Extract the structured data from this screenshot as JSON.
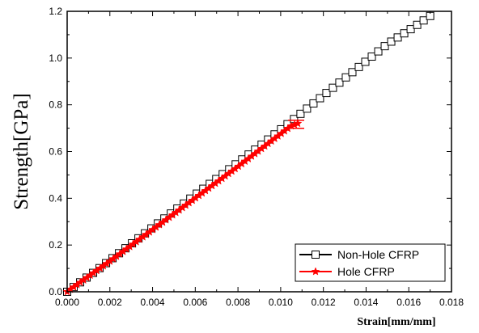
{
  "chart_data": {
    "type": "line",
    "title": "",
    "xlabel": "Strain[mm/mm]",
    "ylabel": "Strength[GPa]",
    "xlim": [
      0.0,
      0.018
    ],
    "ylim": [
      0.0,
      1.2
    ],
    "xticks": [
      "0.000",
      "0.002",
      "0.004",
      "0.006",
      "0.008",
      "0.010",
      "0.012",
      "0.014",
      "0.016",
      "0.018"
    ],
    "yticks": [
      "0.0",
      "0.2",
      "0.4",
      "0.6",
      "0.8",
      "1.0",
      "1.2"
    ],
    "legend_position": "bottom-right",
    "grid": false,
    "series": [
      {
        "name": "Non-Hole CFRP",
        "color": "#000000",
        "marker": "open-square",
        "x": [
          0.0,
          0.0015,
          0.003,
          0.0045,
          0.006,
          0.0075,
          0.009,
          0.0105,
          0.012,
          0.0135,
          0.015,
          0.0162,
          0.017
        ],
        "y": [
          0.0,
          0.1,
          0.205,
          0.31,
          0.415,
          0.518,
          0.622,
          0.73,
          0.84,
          0.95,
          1.06,
          1.13,
          1.18
        ]
      },
      {
        "name": "Hole CFRP",
        "color": "#ff0000",
        "marker": "star",
        "x": [
          0.0,
          0.002,
          0.004,
          0.006,
          0.008,
          0.0095,
          0.0105,
          0.0108
        ],
        "y": [
          0.0,
          0.13,
          0.265,
          0.4,
          0.535,
          0.64,
          0.71,
          0.72
        ]
      }
    ]
  }
}
